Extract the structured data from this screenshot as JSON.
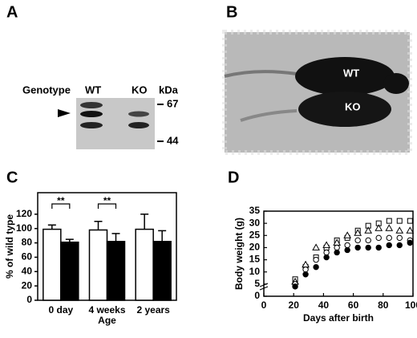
{
  "panel_a": {
    "label": "A",
    "row_title": "Genotype",
    "lanes": [
      "WT",
      "KO"
    ],
    "unit": "kDa",
    "markers": [
      "67",
      "44"
    ]
  },
  "panel_b": {
    "label": "B",
    "labels": [
      "WT",
      "KO"
    ]
  },
  "chart_data": [
    {
      "type": "bar",
      "panel": "C",
      "ylabel": "% of  wild type",
      "xlabel": "Age",
      "categories": [
        "0 day",
        "4 weeks",
        "2 years"
      ],
      "series": [
        {
          "color": "#ffffff",
          "values": [
            99,
            98,
            99
          ],
          "errors": [
            6,
            12,
            21
          ]
        },
        {
          "color": "#000000",
          "values": [
            81,
            82,
            82
          ],
          "errors": [
            4,
            11,
            15
          ]
        }
      ],
      "annotations": [
        "**",
        "**"
      ],
      "ylim": [
        0,
        150
      ],
      "yticks": [
        0,
        20,
        40,
        60,
        80,
        100,
        120
      ]
    },
    {
      "type": "scatter",
      "panel": "D",
      "xlabel": "Days after birth",
      "ylabel": "Body weight (g)",
      "series": [
        {
          "marker": "square",
          "color": "#000000",
          "x": [
            21,
            28,
            35,
            42,
            49,
            56,
            63,
            70,
            77,
            84,
            91,
            98
          ],
          "values": [
            7,
            12,
            16,
            20,
            23,
            24,
            27,
            29,
            30,
            31,
            31,
            31
          ]
        },
        {
          "marker": "triangle",
          "color": "#000000",
          "x": [
            21,
            28,
            35,
            42,
            49,
            56,
            63,
            70,
            77,
            84,
            91,
            98
          ],
          "values": [
            6,
            13,
            20,
            21,
            22,
            25,
            26,
            27,
            28,
            28,
            27,
            27
          ]
        },
        {
          "marker": "circle",
          "color": "#000000",
          "x": [
            21,
            28,
            35,
            42,
            49,
            56,
            63,
            70,
            77,
            84,
            91,
            98
          ],
          "values": [
            5,
            11,
            15,
            18,
            20,
            21,
            23,
            23,
            24,
            24,
            24,
            23
          ]
        },
        {
          "marker": "dot",
          "color": "#000000",
          "x": [
            21,
            28,
            35,
            42,
            49,
            56,
            63,
            70,
            77,
            84,
            91,
            98
          ],
          "values": [
            4,
            9,
            12,
            16,
            18,
            19,
            20,
            20,
            20,
            21,
            21,
            22
          ]
        }
      ],
      "xlim": [
        0,
        100
      ],
      "xticks": [
        0,
        20,
        40,
        60,
        80,
        100
      ],
      "ylim": [
        0,
        35
      ],
      "yticks": [
        0,
        5,
        10,
        15,
        20,
        25,
        30,
        35
      ]
    }
  ]
}
